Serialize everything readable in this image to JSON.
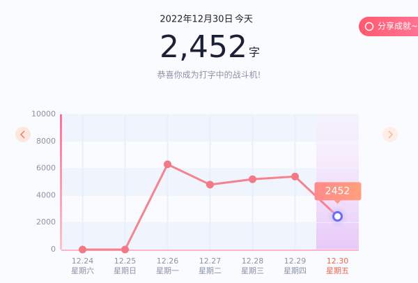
{
  "header": {
    "date": "2022年12月30日",
    "today": "今天",
    "count": "2,452",
    "unit": "字",
    "message": "恭喜你成为打字中的战斗机!",
    "share": "分享成就~"
  },
  "chart_data": {
    "type": "line",
    "categories": [
      "12.24",
      "12.25",
      "12.26",
      "12.27",
      "12.28",
      "12.29",
      "12.30"
    ],
    "weekdays": [
      "星期六",
      "星期日",
      "星期一",
      "星期二",
      "星期三",
      "星期四",
      "星期五"
    ],
    "values": [
      0,
      0,
      6300,
      4800,
      5200,
      5400,
      2452
    ],
    "color": "#f5828f",
    "ylim": [
      0,
      10000
    ],
    "yticks": [
      0,
      2000,
      4000,
      6000,
      8000,
      10000
    ],
    "grid": true
  }
}
